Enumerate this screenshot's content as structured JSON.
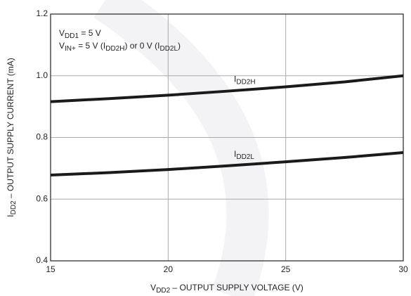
{
  "chart_data": {
    "type": "line",
    "x_label": [
      {
        "text": "V"
      },
      {
        "text": "DD2",
        "sub": true
      },
      {
        "text": " – OUTPUT SUPPLY VOLTAGE (V)"
      }
    ],
    "y_label": [
      {
        "text": "I"
      },
      {
        "text": "DD2",
        "sub": true
      },
      {
        "text": " – OUTPUT SUPPLY CURRENT (mA)"
      }
    ],
    "annotations": [
      [
        {
          "text": "V"
        },
        {
          "text": "DD1",
          "sub": true
        },
        {
          "text": " = 5 V"
        }
      ],
      [
        {
          "text": "V"
        },
        {
          "text": "IN+",
          "sub": true
        },
        {
          "text": " = 5 V (I"
        },
        {
          "text": "DD2H",
          "sub": true
        },
        {
          "text": ") or 0 V (I"
        },
        {
          "text": "DD2L",
          "sub": true
        },
        {
          "text": ")"
        }
      ]
    ],
    "x": [
      15,
      17.5,
      20,
      22.5,
      25,
      27.5,
      30
    ],
    "series": [
      {
        "name": [
          {
            "text": "I"
          },
          {
            "text": "DD2H",
            "sub": true
          }
        ],
        "color": "#1a1a1a",
        "values": [
          0.916,
          0.926,
          0.937,
          0.95,
          0.964,
          0.98,
          1.0
        ]
      },
      {
        "name": [
          {
            "text": "I"
          },
          {
            "text": "DD2L",
            "sub": true
          }
        ],
        "color": "#1a1a1a",
        "values": [
          0.678,
          0.686,
          0.696,
          0.708,
          0.721,
          0.735,
          0.751
        ]
      }
    ],
    "xlim": [
      15,
      30
    ],
    "xticks": [
      15,
      20,
      25,
      30
    ],
    "ylim": [
      0.4,
      1.2
    ],
    "yticks": [
      0.4,
      0.6,
      0.8,
      {
        "value": 1.0,
        "label": "1.0"
      },
      1.2
    ],
    "grid": true
  }
}
